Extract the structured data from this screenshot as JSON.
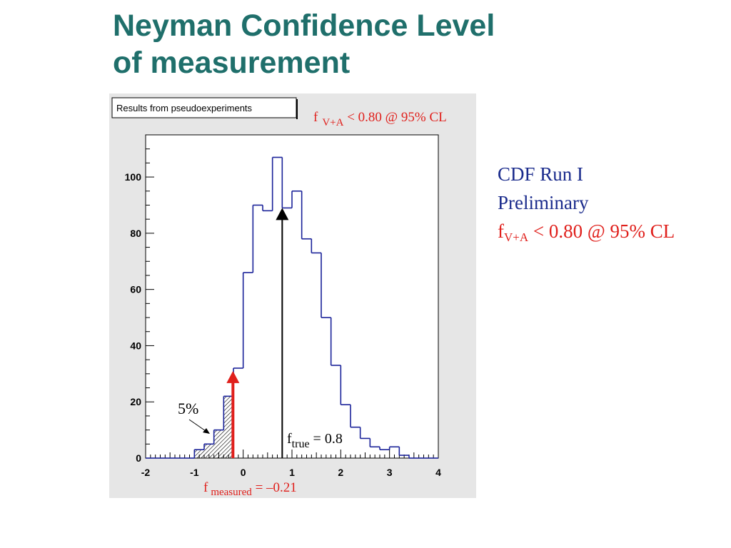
{
  "title": {
    "line1": "Neyman Confidence Level",
    "line2": "of measurement"
  },
  "side_notes": {
    "line1": "CDF Run I",
    "line2": "Preliminary",
    "result_f": "f",
    "result_sub": "V+A",
    "result_rest": " < 0.80 @ 95% CL"
  },
  "colors": {
    "title": "#1f6f6b",
    "histogram": "#1a2299",
    "measured_arrow": "#e0201c",
    "true_arrow": "#000000",
    "frame_bg": "#e6e6e6",
    "plot_bg": "#ffffff",
    "side_text": "#1a2b8c",
    "limit_text": "#e0201c"
  },
  "chart_data": {
    "type": "histogram",
    "legend": "Results from pseudoexperiments",
    "header": {
      "f": "f",
      "sub": "V+A",
      "rest": " < 0.80 @ 95% CL"
    },
    "xlim": [
      -2,
      4
    ],
    "ylim": [
      0,
      115
    ],
    "x_ticks": [
      "-2",
      "-1",
      "0",
      "1",
      "2",
      "3",
      "4"
    ],
    "y_ticks": [
      "0",
      "20",
      "40",
      "60",
      "80",
      "100"
    ],
    "bin_width": 0.2,
    "bins": [
      {
        "x0": -2.0,
        "value": 0
      },
      {
        "x0": -1.8,
        "value": 0
      },
      {
        "x0": -1.6,
        "value": 0
      },
      {
        "x0": -1.4,
        "value": 0
      },
      {
        "x0": -1.2,
        "value": 0
      },
      {
        "x0": -1.0,
        "value": 3
      },
      {
        "x0": -0.8,
        "value": 5
      },
      {
        "x0": -0.6,
        "value": 10
      },
      {
        "x0": -0.4,
        "value": 22
      },
      {
        "x0": -0.2,
        "value": 32
      },
      {
        "x0": 0.0,
        "value": 66
      },
      {
        "x0": 0.2,
        "value": 90
      },
      {
        "x0": 0.4,
        "value": 88
      },
      {
        "x0": 0.6,
        "value": 107
      },
      {
        "x0": 0.8,
        "value": 89
      },
      {
        "x0": 1.0,
        "value": 95
      },
      {
        "x0": 1.2,
        "value": 78
      },
      {
        "x0": 1.4,
        "value": 73
      },
      {
        "x0": 1.6,
        "value": 50
      },
      {
        "x0": 1.8,
        "value": 33
      },
      {
        "x0": 2.0,
        "value": 19
      },
      {
        "x0": 2.2,
        "value": 11
      },
      {
        "x0": 2.4,
        "value": 7
      },
      {
        "x0": 2.6,
        "value": 4
      },
      {
        "x0": 2.8,
        "value": 3
      },
      {
        "x0": 3.0,
        "value": 4
      },
      {
        "x0": 3.2,
        "value": 1
      },
      {
        "x0": 3.4,
        "value": 0
      },
      {
        "x0": 3.6,
        "value": 0
      },
      {
        "x0": 3.8,
        "value": 0
      }
    ],
    "shaded_region": {
      "from": -1.0,
      "to": -0.21,
      "label": "5%"
    },
    "measured": {
      "x": -0.21,
      "y_top": 31,
      "label_f": "f",
      "label_sub": "measured",
      "label_rest": " = –0.21"
    },
    "true_value": {
      "x": 0.8,
      "y_top": 89,
      "label_f": "f",
      "label_sub": "true",
      "label_rest": " = 0.8"
    }
  }
}
